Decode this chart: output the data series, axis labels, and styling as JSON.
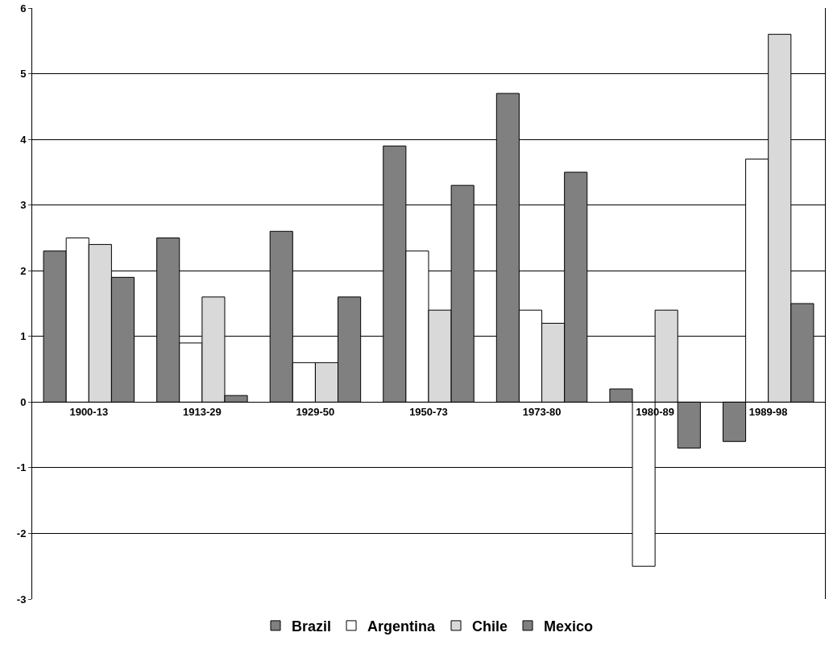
{
  "chart_data": {
    "type": "bar",
    "categories": [
      "1900-13",
      "1913-29",
      "1929-50",
      "1950-73",
      "1973-80",
      "1980-89",
      "1989-98"
    ],
    "series": [
      {
        "name": "Brazil",
        "color": "#808080",
        "values": [
          2.3,
          2.5,
          2.6,
          3.9,
          4.7,
          0.2,
          -0.6
        ]
      },
      {
        "name": "Argentina",
        "color": "#ffffff",
        "values": [
          2.5,
          0.9,
          0.6,
          2.3,
          1.4,
          -2.5,
          3.7
        ]
      },
      {
        "name": "Chile",
        "color": "#d9d9d9",
        "values": [
          2.4,
          1.6,
          0.6,
          1.4,
          1.2,
          1.4,
          5.6
        ]
      },
      {
        "name": "Mexico",
        "color": "#808080",
        "values": [
          1.9,
          0.1,
          1.6,
          3.3,
          3.5,
          -0.7,
          1.5
        ]
      }
    ],
    "ylim": [
      -3,
      6
    ],
    "yticks": [
      -3,
      -2,
      -1,
      0,
      1,
      2,
      3,
      4,
      5,
      6
    ],
    "grid": "y",
    "legend": "bottom"
  }
}
